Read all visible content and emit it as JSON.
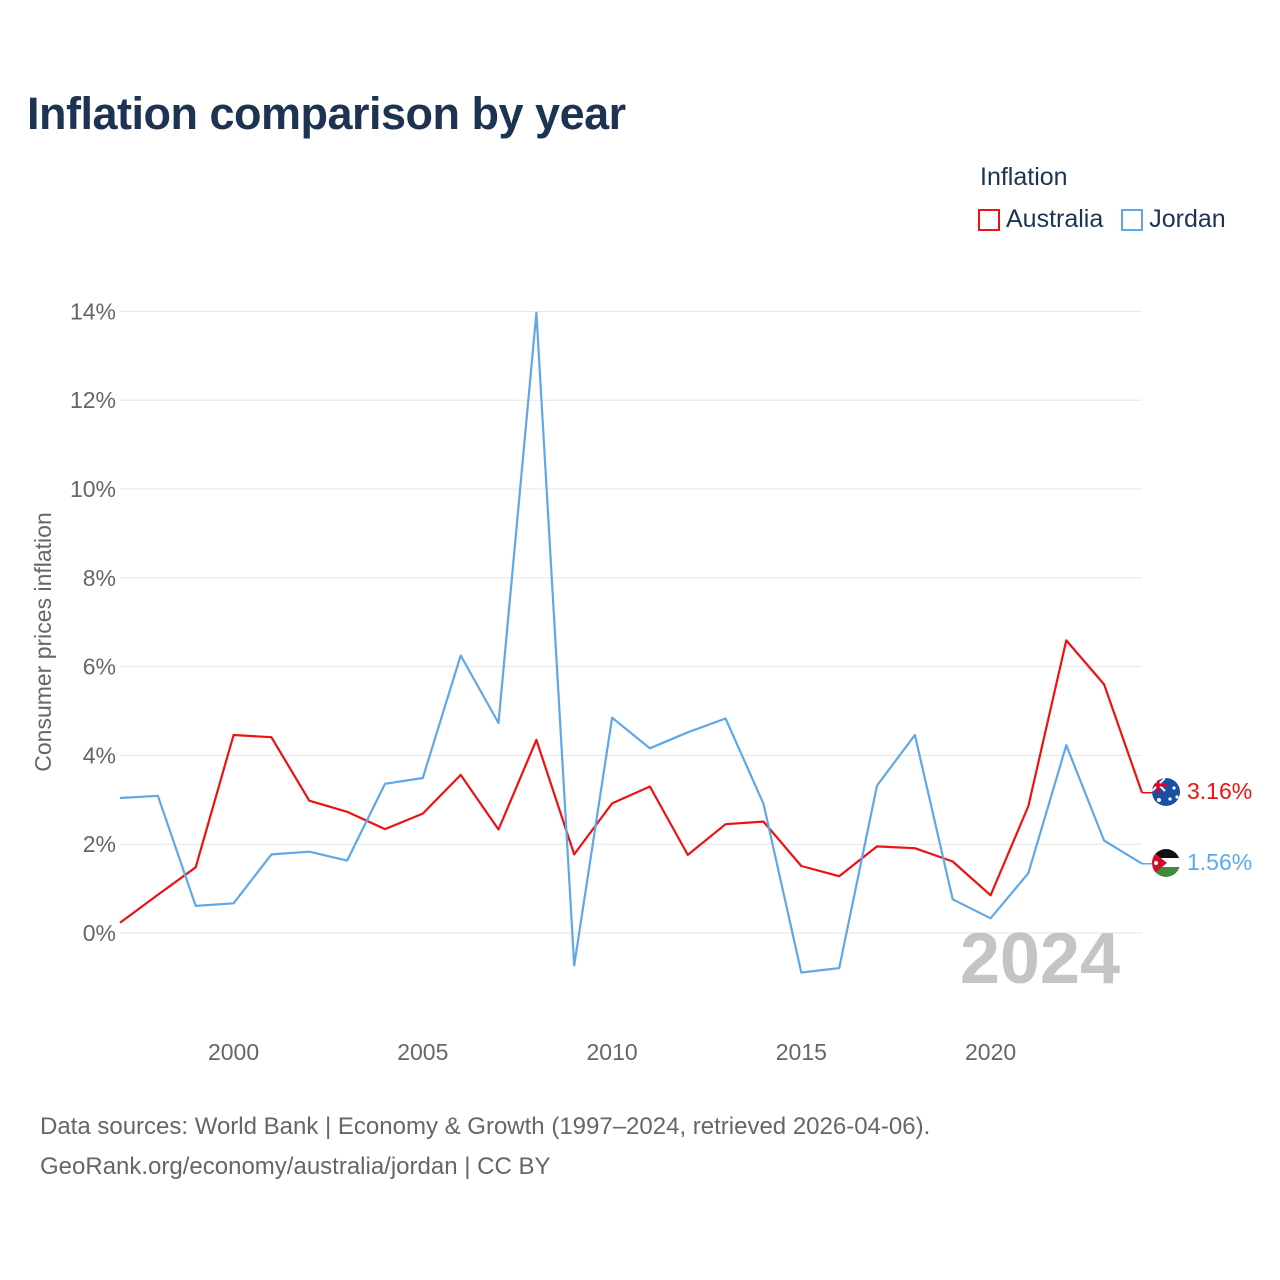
{
  "title": "Inflation comparison by year",
  "legend": {
    "title": "Inflation",
    "items": [
      {
        "label": "Australia",
        "color": "#ee1111"
      },
      {
        "label": "Jordan",
        "color": "#5fa8e8"
      }
    ]
  },
  "sources": {
    "line1": "Data sources: World Bank | Economy & Growth (1997–2024, retrieved 2026-04-06).",
    "line2": "GeoRank.org/economy/australia/jordan | CC BY"
  },
  "chart_data": {
    "type": "line",
    "title": "Inflation comparison by year",
    "xlabel": "",
    "ylabel": "Consumer prices inflation",
    "x": [
      1997,
      1998,
      1999,
      2000,
      2001,
      2002,
      2003,
      2004,
      2005,
      2006,
      2007,
      2008,
      2009,
      2010,
      2011,
      2012,
      2013,
      2014,
      2015,
      2016,
      2017,
      2018,
      2019,
      2020,
      2021,
      2022,
      2023,
      2024
    ],
    "xlim": [
      1997,
      2024
    ],
    "ylim": [
      -2,
      14
    ],
    "xticks": [
      2000,
      2005,
      2010,
      2015,
      2020
    ],
    "yticks": [
      0,
      2,
      4,
      6,
      8,
      10,
      12,
      14
    ],
    "ytick_labels": [
      "0%",
      "2%",
      "4%",
      "6%",
      "8%",
      "10%",
      "12%",
      "14%"
    ],
    "xtick_labels": [
      "2000",
      "2005",
      "2010",
      "2015",
      "2020"
    ],
    "grid": true,
    "current_year_label": "2024",
    "series": [
      {
        "name": "Australia",
        "color": "#ee1111",
        "values": [
          0.23,
          0.86,
          1.48,
          4.46,
          4.41,
          2.98,
          2.73,
          2.34,
          2.69,
          3.56,
          2.33,
          4.35,
          1.77,
          2.92,
          3.3,
          1.76,
          2.45,
          2.51,
          1.51,
          1.28,
          1.95,
          1.91,
          1.61,
          0.85,
          2.86,
          6.59,
          5.6,
          3.16
        ],
        "end_label": "3.16%"
      },
      {
        "name": "Jordan",
        "color": "#5fa8e8",
        "values": [
          3.04,
          3.09,
          0.61,
          0.67,
          1.77,
          1.83,
          1.63,
          3.36,
          3.49,
          6.25,
          4.73,
          13.97,
          -0.73,
          4.85,
          4.16,
          4.52,
          4.83,
          2.91,
          -0.89,
          -0.79,
          3.32,
          4.46,
          0.76,
          0.33,
          1.35,
          4.23,
          2.08,
          1.56
        ],
        "end_label": "1.56%"
      }
    ]
  }
}
